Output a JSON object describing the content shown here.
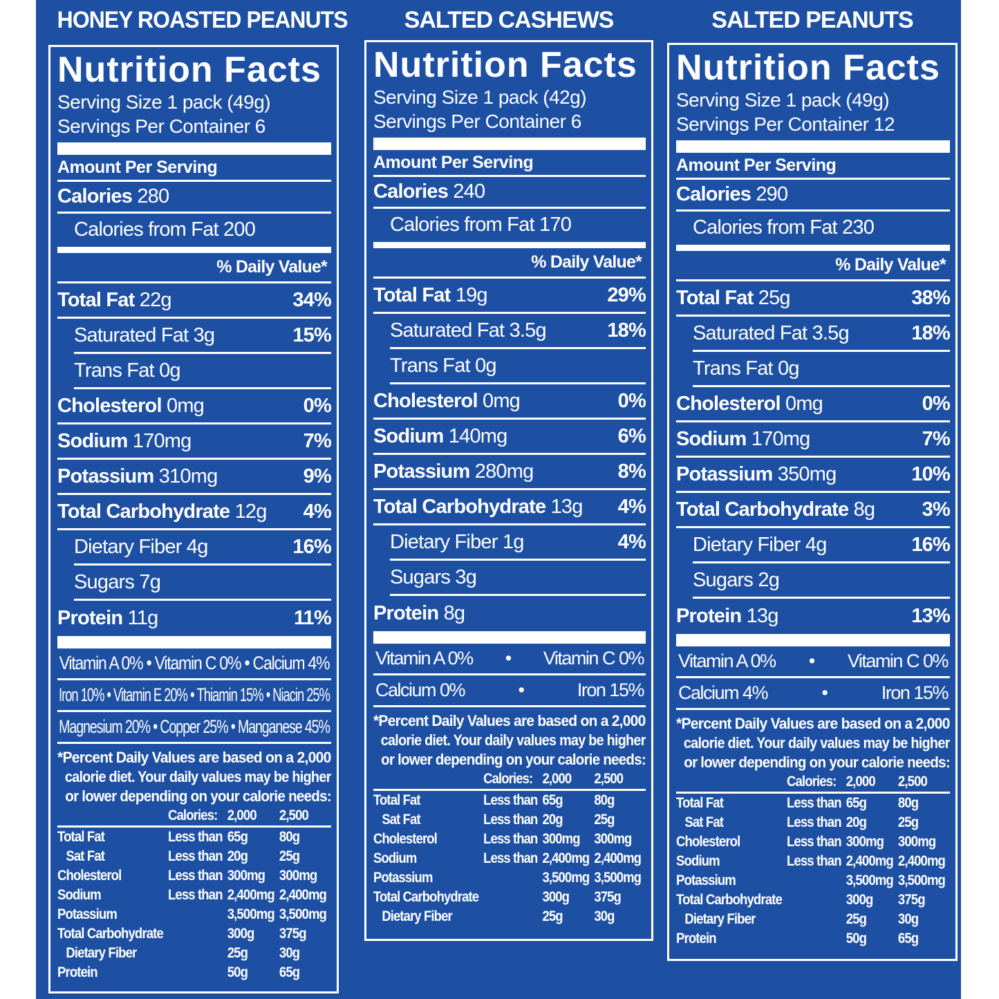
{
  "colors": {
    "background": "#1d4fa3",
    "text": "#ffffff"
  },
  "labels": [
    {
      "product": "HONEY ROASTED PEANUTS",
      "heading": "Nutrition Facts",
      "serving_size": "Serving Size 1 pack (49g)",
      "servings_per_container": "Servings Per Container 6",
      "amount_per_serving": "Amount Per Serving",
      "calories_label": "Calories",
      "calories": "280",
      "calories_from_fat": "Calories from Fat 200",
      "daily_value_header": "% Daily Value*",
      "nutrients": [
        {
          "name": "Total Fat",
          "amount": "22g",
          "dv": "34%",
          "bold": true,
          "indent": false
        },
        {
          "name": "Saturated Fat",
          "amount": "3g",
          "dv": "15%",
          "bold": false,
          "indent": true
        },
        {
          "name": "Trans Fat",
          "amount": "0g",
          "dv": "",
          "bold": false,
          "indent": true
        },
        {
          "name": "Cholesterol",
          "amount": "0mg",
          "dv": "0%",
          "bold": true,
          "indent": false
        },
        {
          "name": "Sodium",
          "amount": "170mg",
          "dv": "7%",
          "bold": true,
          "indent": false
        },
        {
          "name": "Potassium",
          "amount": "310mg",
          "dv": "9%",
          "bold": true,
          "indent": false
        },
        {
          "name": "Total Carbohydrate",
          "amount": "12g",
          "dv": "4%",
          "bold": true,
          "indent": false
        },
        {
          "name": "Dietary Fiber",
          "amount": "4g",
          "dv": "16%",
          "bold": false,
          "indent": true
        },
        {
          "name": "Sugars",
          "amount": "7g",
          "dv": "",
          "bold": false,
          "indent": true
        },
        {
          "name": "Protein",
          "amount": "11g",
          "dv": "11%",
          "bold": true,
          "indent": false
        }
      ],
      "vitamins": [
        [
          "Vitamin A 0%",
          "Vitamin C 0%",
          "Calcium 4%"
        ],
        [
          "Iron 10%",
          "Vitamin E 20%",
          "Thiamin 15%",
          "Niacin 25%"
        ],
        [
          "Magnesium 20%",
          "Copper 25%",
          "Manganese 45%"
        ]
      ],
      "footnote": [
        "*Percent Daily Values are based on a 2,000",
        "calorie diet. Your daily values may be higher",
        "or lower depending on your calorie needs:"
      ],
      "table_header": [
        "",
        "Calories:",
        "2,000",
        "2,500"
      ],
      "table": [
        [
          "Total Fat",
          "Less than",
          "65g",
          "80g"
        ],
        [
          "Sat Fat",
          "Less than",
          "20g",
          "25g"
        ],
        [
          "Cholesterol",
          "Less than",
          "300mg",
          "300mg"
        ],
        [
          "Sodium",
          "Less than",
          "2,400mg",
          "2,400mg"
        ],
        [
          "Potassium",
          "",
          "3,500mg",
          "3,500mg"
        ],
        [
          "Total Carbohydrate",
          "",
          "300g",
          "375g"
        ],
        [
          "Dietary Fiber",
          "",
          "25g",
          "30g"
        ],
        [
          "Protein",
          "",
          "50g",
          "65g"
        ]
      ]
    },
    {
      "product": "SALTED CASHEWS",
      "heading": "Nutrition Facts",
      "serving_size": "Serving Size 1 pack (42g)",
      "servings_per_container": "Servings Per Container 6",
      "amount_per_serving": "Amount Per Serving",
      "calories_label": "Calories",
      "calories": "240",
      "calories_from_fat": "Calories from Fat 170",
      "daily_value_header": "% Daily Value*",
      "nutrients": [
        {
          "name": "Total Fat",
          "amount": "19g",
          "dv": "29%",
          "bold": true,
          "indent": false
        },
        {
          "name": "Saturated Fat",
          "amount": "3.5g",
          "dv": "18%",
          "bold": false,
          "indent": true
        },
        {
          "name": "Trans Fat",
          "amount": "0g",
          "dv": "",
          "bold": false,
          "indent": true
        },
        {
          "name": "Cholesterol",
          "amount": "0mg",
          "dv": "0%",
          "bold": true,
          "indent": false
        },
        {
          "name": "Sodium",
          "amount": "140mg",
          "dv": "6%",
          "bold": true,
          "indent": false
        },
        {
          "name": "Potassium",
          "amount": "280mg",
          "dv": "8%",
          "bold": true,
          "indent": false
        },
        {
          "name": "Total Carbohydrate",
          "amount": "13g",
          "dv": "4%",
          "bold": true,
          "indent": false
        },
        {
          "name": "Dietary Fiber",
          "amount": "1g",
          "dv": "4%",
          "bold": false,
          "indent": true
        },
        {
          "name": "Sugars",
          "amount": "3g",
          "dv": "",
          "bold": false,
          "indent": true
        },
        {
          "name": "Protein",
          "amount": "8g",
          "dv": "",
          "bold": true,
          "indent": false
        }
      ],
      "vitamins": [
        [
          "Vitamin A 0%",
          "Vitamin C 0%"
        ],
        [
          "Calcium 0%",
          "Iron 15%"
        ]
      ],
      "footnote": [
        "*Percent Daily Values are based on a 2,000",
        "calorie diet. Your daily values may be higher",
        "or lower depending on your calorie needs:"
      ],
      "table_header": [
        "",
        "Calories:",
        "2,000",
        "2,500"
      ],
      "table": [
        [
          "Total Fat",
          "Less than",
          "65g",
          "80g"
        ],
        [
          "Sat Fat",
          "Less than",
          "20g",
          "25g"
        ],
        [
          "Cholesterol",
          "Less than",
          "300mg",
          "300mg"
        ],
        [
          "Sodium",
          "Less than",
          "2,400mg",
          "2,400mg"
        ],
        [
          "Potassium",
          "",
          "3,500mg",
          "3,500mg"
        ],
        [
          "Total Carbohydrate",
          "",
          "300g",
          "375g"
        ],
        [
          "Dietary Fiber",
          "",
          "25g",
          "30g"
        ]
      ]
    },
    {
      "product": "SALTED PEANUTS",
      "heading": "Nutrition Facts",
      "serving_size": "Serving Size 1 pack (49g)",
      "servings_per_container": "Servings Per Container 12",
      "amount_per_serving": "Amount Per Serving",
      "calories_label": "Calories",
      "calories": "290",
      "calories_from_fat": "Calories from Fat 230",
      "daily_value_header": "% Daily Value*",
      "nutrients": [
        {
          "name": "Total Fat",
          "amount": "25g",
          "dv": "38%",
          "bold": true,
          "indent": false
        },
        {
          "name": "Saturated Fat",
          "amount": "3.5g",
          "dv": "18%",
          "bold": false,
          "indent": true
        },
        {
          "name": "Trans Fat",
          "amount": "0g",
          "dv": "",
          "bold": false,
          "indent": true
        },
        {
          "name": "Cholesterol",
          "amount": "0mg",
          "dv": "0%",
          "bold": true,
          "indent": false
        },
        {
          "name": "Sodium",
          "amount": "170mg",
          "dv": "7%",
          "bold": true,
          "indent": false
        },
        {
          "name": "Potassium",
          "amount": "350mg",
          "dv": "10%",
          "bold": true,
          "indent": false
        },
        {
          "name": "Total Carbohydrate",
          "amount": "8g",
          "dv": "3%",
          "bold": true,
          "indent": false
        },
        {
          "name": "Dietary Fiber",
          "amount": "4g",
          "dv": "16%",
          "bold": false,
          "indent": true
        },
        {
          "name": "Sugars",
          "amount": "2g",
          "dv": "",
          "bold": false,
          "indent": true
        },
        {
          "name": "Protein",
          "amount": "13g",
          "dv": "13%",
          "bold": true,
          "indent": false
        }
      ],
      "vitamins": [
        [
          "Vitamin A 0%",
          "Vitamin C 0%"
        ],
        [
          "Calcium 4%",
          "Iron 15%"
        ]
      ],
      "footnote": [
        "*Percent Daily Values are based on a 2,000",
        "calorie diet. Your daily values may be higher",
        "or lower depending on your calorie needs:"
      ],
      "table_header": [
        "",
        "Calories:",
        "2,000",
        "2,500"
      ],
      "table": [
        [
          "Total Fat",
          "Less than",
          "65g",
          "80g"
        ],
        [
          "Sat Fat",
          "Less than",
          "20g",
          "25g"
        ],
        [
          "Cholesterol",
          "Less than",
          "300mg",
          "300mg"
        ],
        [
          "Sodium",
          "Less than",
          "2,400mg",
          "2,400mg"
        ],
        [
          "Potassium",
          "",
          "3,500mg",
          "3,500mg"
        ],
        [
          "Total Carbohydrate",
          "",
          "300g",
          "375g"
        ],
        [
          "Dietary Fiber",
          "",
          "25g",
          "30g"
        ],
        [
          "Protein",
          "",
          "50g",
          "65g"
        ]
      ]
    }
  ]
}
